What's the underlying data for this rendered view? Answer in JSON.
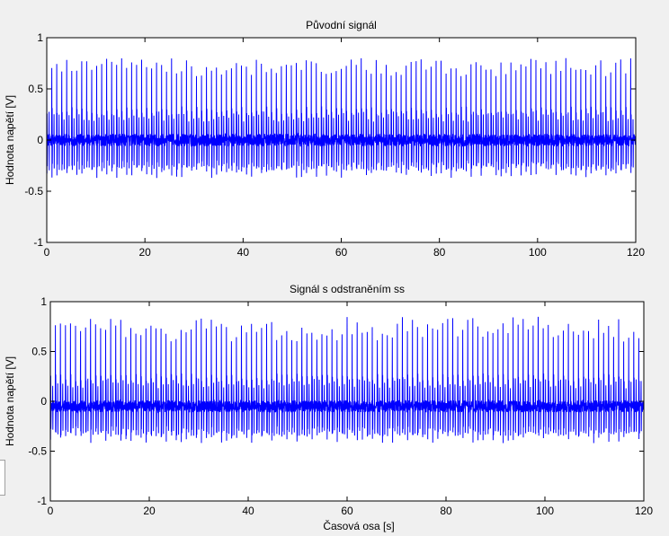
{
  "figure": {
    "background": "#f0f0f0",
    "axes_background": "#ffffff",
    "line_color": "#0000ff"
  },
  "chart_data": [
    {
      "type": "line",
      "title": "Původní signál",
      "xlabel": "",
      "ylabel": "Hodnota napětí [V]",
      "xlim": [
        0,
        120
      ],
      "ylim": [
        -1,
        1
      ],
      "xticks": [
        0,
        20,
        40,
        60,
        80,
        100,
        120
      ],
      "yticks": [
        -1,
        -0.5,
        0,
        0.5,
        1
      ],
      "xtick_labels": [
        "0",
        "20",
        "40",
        "60",
        "80",
        "100",
        "120"
      ],
      "ytick_labels": [
        "-1",
        "-0.5",
        "0",
        "0.5",
        "1"
      ],
      "grid": false,
      "series": [
        {
          "color": "#0000ff",
          "x_range": [
            0,
            120
          ],
          "description_values": {
            "baseline": 0.0,
            "r_peak_max": 0.8,
            "r_peak_min": 0.62,
            "min_value": -0.38,
            "beats_per_axis": 118
          }
        }
      ]
    },
    {
      "type": "line",
      "title": "Signál s odstraněním ss",
      "xlabel": "Časová osa [s]",
      "ylabel": "Hodnota napětí [V]",
      "xlim": [
        0,
        120
      ],
      "ylim": [
        -1,
        1
      ],
      "xticks": [
        0,
        20,
        40,
        60,
        80,
        100,
        120
      ],
      "yticks": [
        -1,
        -0.5,
        0,
        0.5,
        1
      ],
      "xtick_labels": [
        "0",
        "20",
        "40",
        "60",
        "80",
        "100",
        "120"
      ],
      "ytick_labels": [
        "-1",
        "-0.5",
        "0",
        "0.5",
        "1"
      ],
      "grid": false,
      "series": [
        {
          "color": "#0000ff",
          "x_range": [
            0,
            120
          ],
          "description_values": {
            "baseline": -0.05,
            "r_peak_max": 0.85,
            "r_peak_min": 0.6,
            "min_value": -0.44,
            "beats_per_axis": 118
          }
        }
      ]
    }
  ]
}
